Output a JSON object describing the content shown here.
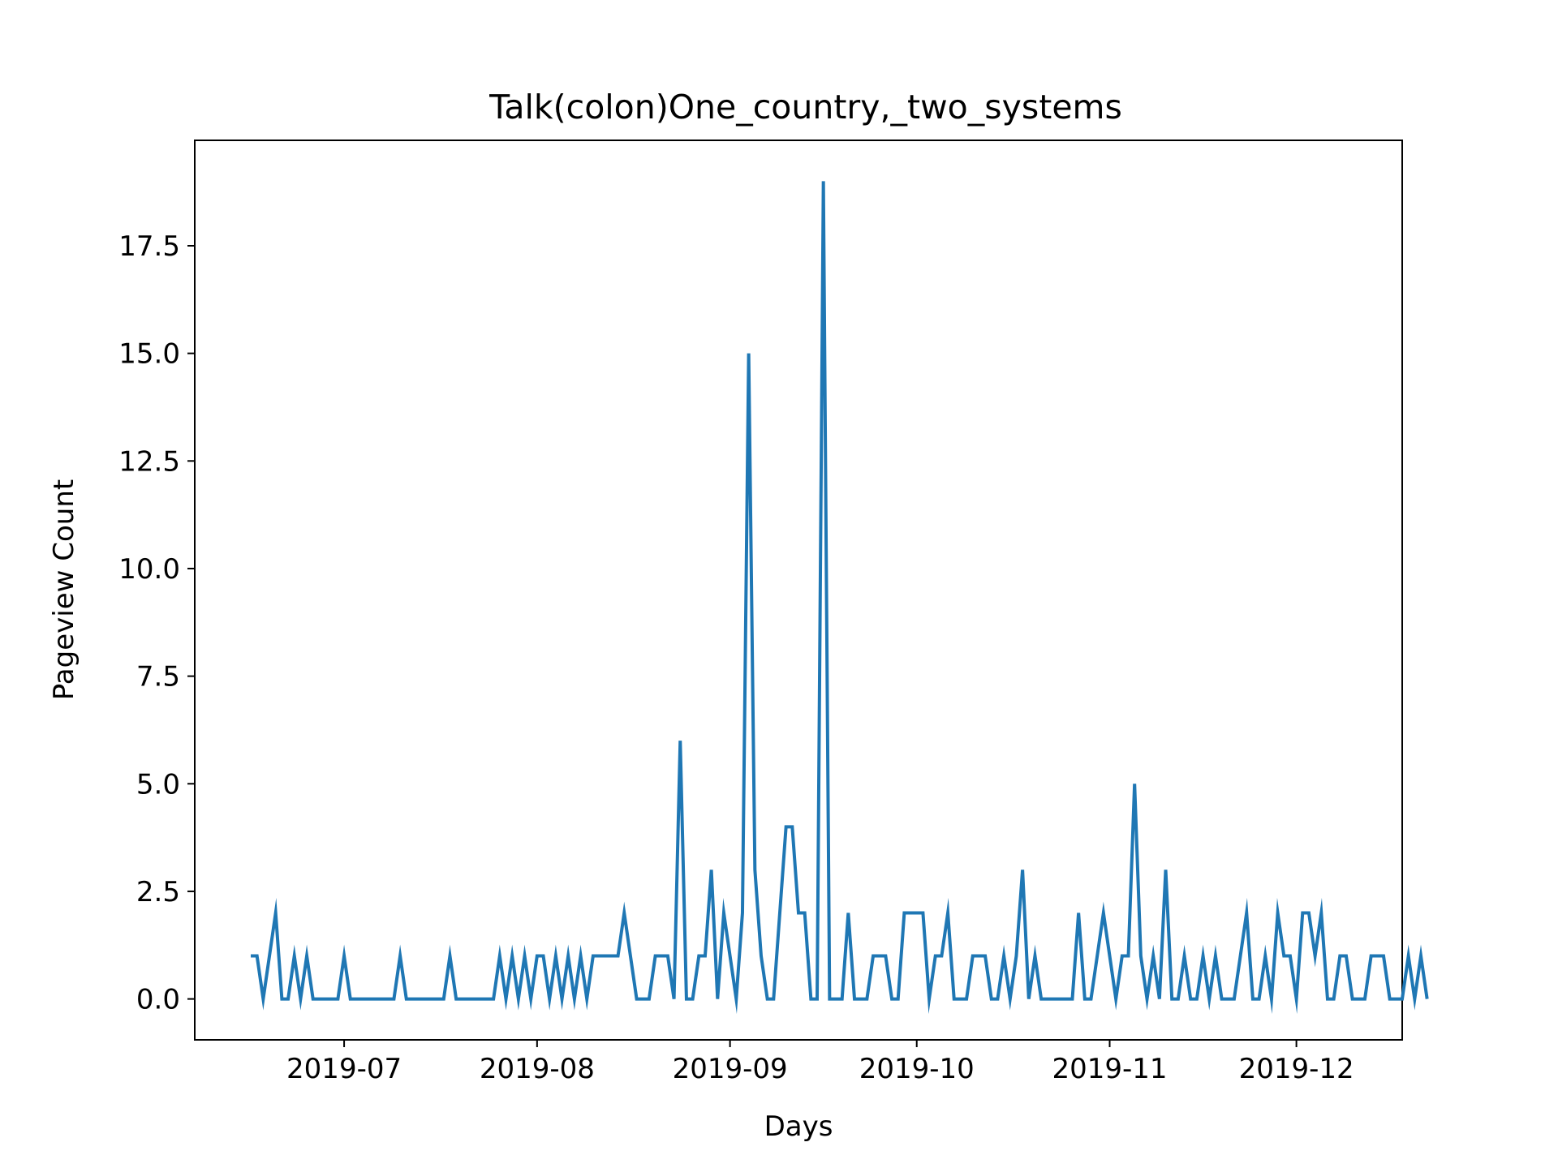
{
  "chart_data": {
    "type": "line",
    "title": "Talk(colon)One_country,_two_systems",
    "xlabel": "Days",
    "ylabel": "Pageview Count",
    "x_start": "2019-06-16",
    "x_end": "2019-12-09",
    "xlim": [
      "2019-06-07",
      "2019-12-18"
    ],
    "ylim": [
      -0.95,
      19.95
    ],
    "grid": false,
    "legend": "none",
    "x_ticks": [
      "2019-07-01",
      "2019-08-01",
      "2019-09-01",
      "2019-10-01",
      "2019-11-01",
      "2019-12-01"
    ],
    "x_tick_labels": [
      "2019-07",
      "2019-08",
      "2019-09",
      "2019-10",
      "2019-11",
      "2019-12"
    ],
    "y_ticks": [
      0,
      2.5,
      5,
      7.5,
      10,
      12.5,
      15,
      17.5
    ],
    "y_tick_labels": [
      "0.0",
      "2.5",
      "5.0",
      "7.5",
      "10.0",
      "12.5",
      "15.0",
      "17.5"
    ],
    "series": [
      {
        "color": "#1f77b4",
        "values": [
          1,
          1,
          0,
          1,
          2,
          0,
          0,
          1,
          0,
          1,
          0,
          0,
          0,
          0,
          0,
          1,
          0,
          0,
          0,
          0,
          0,
          0,
          0,
          0,
          1,
          0,
          0,
          0,
          0,
          0,
          0,
          0,
          1,
          0,
          0,
          0,
          0,
          0,
          0,
          0,
          1,
          0,
          1,
          0,
          1,
          0,
          1,
          1,
          0,
          1,
          0,
          1,
          0,
          1,
          0,
          1,
          1,
          1,
          1,
          1,
          2,
          1,
          0,
          0,
          0,
          1,
          1,
          1,
          0,
          6,
          0,
          0,
          1,
          1,
          3,
          0,
          2,
          1,
          0,
          2,
          15,
          3,
          1,
          0,
          0,
          2,
          4,
          4,
          2,
          2,
          0,
          0,
          19,
          0,
          0,
          0,
          2,
          0,
          0,
          0,
          1,
          1,
          1,
          0,
          0,
          2,
          2,
          2,
          2,
          0,
          1,
          1,
          2,
          0,
          0,
          0,
          1,
          1,
          1,
          0,
          0,
          1,
          0,
          1,
          3,
          0,
          1,
          0,
          0,
          0,
          0,
          0,
          0,
          2,
          0,
          0,
          1,
          2,
          1,
          0,
          1,
          1,
          5,
          1,
          0,
          1,
          0,
          3,
          0,
          0,
          1,
          0,
          0,
          1,
          0,
          1,
          0,
          0,
          0,
          1,
          2,
          0,
          0,
          1,
          0,
          2,
          1,
          1,
          0,
          2,
          2,
          1,
          2,
          0,
          0,
          1,
          1,
          0,
          0,
          0,
          1,
          1,
          1,
          0,
          0,
          0,
          1,
          0,
          1,
          0
        ]
      }
    ]
  }
}
